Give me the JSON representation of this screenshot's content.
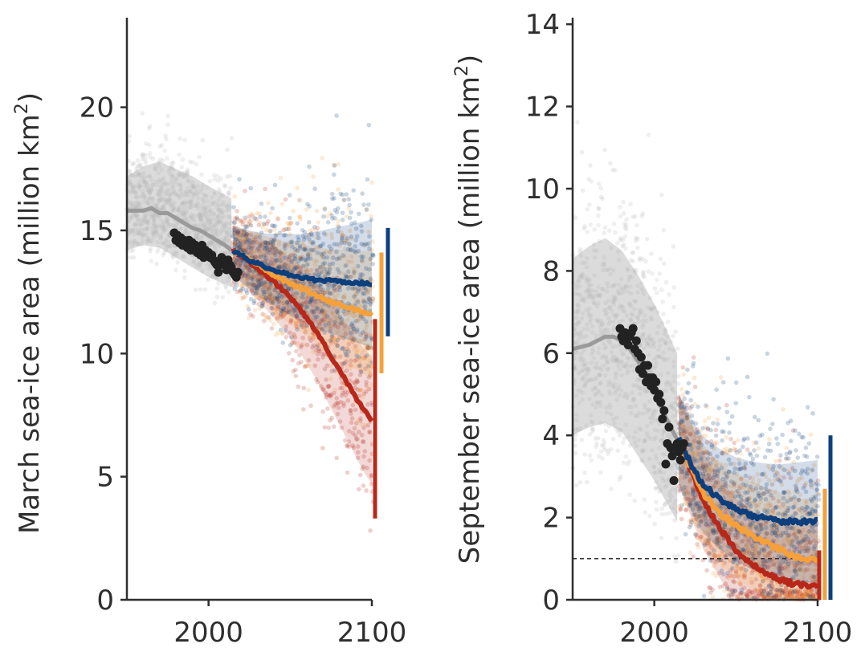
{
  "chart_data": [
    {
      "type": "scatter",
      "panel": "left",
      "ylabel": "March sea-ice area (million km",
      "ylabel_sup": "2",
      "ylabel_close": ")",
      "xlim": [
        1950,
        2100
      ],
      "ylim": [
        0,
        23
      ],
      "xticks": [
        2000,
        2100
      ],
      "yticks": [
        0,
        5,
        10,
        15,
        20
      ],
      "historical_mean": [
        [
          1950,
          15.8
        ],
        [
          1960,
          15.8
        ],
        [
          1965,
          15.9
        ],
        [
          1970,
          15.7
        ],
        [
          1975,
          15.7
        ],
        [
          1980,
          15.5
        ],
        [
          1985,
          15.3
        ],
        [
          1990,
          15.1
        ],
        [
          1995,
          15.0
        ],
        [
          2000,
          14.8
        ],
        [
          2005,
          14.6
        ],
        [
          2010,
          14.4
        ],
        [
          2014,
          14.2
        ]
      ],
      "historical_band": [
        [
          1950,
          14.2,
          17.2
        ],
        [
          1960,
          14.4,
          17.6
        ],
        [
          1970,
          14.3,
          17.8
        ],
        [
          1980,
          13.9,
          17.5
        ],
        [
          1990,
          13.5,
          17.2
        ],
        [
          2000,
          13.1,
          16.8
        ],
        [
          2014,
          12.7,
          16.3
        ]
      ],
      "observations": [
        [
          1979,
          14.9
        ],
        [
          1980,
          14.6
        ],
        [
          1981,
          14.8
        ],
        [
          1982,
          14.5
        ],
        [
          1983,
          14.7
        ],
        [
          1984,
          14.4
        ],
        [
          1985,
          14.6
        ],
        [
          1986,
          14.5
        ],
        [
          1987,
          14.3
        ],
        [
          1988,
          14.6
        ],
        [
          1989,
          14.2
        ],
        [
          1990,
          14.5
        ],
        [
          1991,
          14.2
        ],
        [
          1992,
          14.4
        ],
        [
          1993,
          14.1
        ],
        [
          1994,
          14.3
        ],
        [
          1995,
          14.0
        ],
        [
          1996,
          14.4
        ],
        [
          1997,
          13.9
        ],
        [
          1998,
          14.2
        ],
        [
          1999,
          14.0
        ],
        [
          2000,
          14.1
        ],
        [
          2001,
          13.9
        ],
        [
          2002,
          14.0
        ],
        [
          2003,
          13.8
        ],
        [
          2004,
          13.7
        ],
        [
          2005,
          13.6
        ],
        [
          2006,
          13.3
        ],
        [
          2007,
          13.6
        ],
        [
          2008,
          13.9
        ],
        [
          2009,
          13.8
        ],
        [
          2010,
          13.7
        ],
        [
          2011,
          13.4
        ],
        [
          2012,
          13.8
        ],
        [
          2013,
          13.6
        ],
        [
          2014,
          13.5
        ],
        [
          2015,
          13.3
        ],
        [
          2016,
          13.2
        ],
        [
          2017,
          13.1
        ],
        [
          2018,
          13.3
        ]
      ],
      "series": [
        {
          "name": "",
          "color": "#0d3f7d",
          "values": [
            [
              2015,
              14.2
            ],
            [
              2025,
              13.8
            ],
            [
              2035,
              13.5
            ],
            [
              2045,
              13.3
            ],
            [
              2055,
              13.1
            ],
            [
              2065,
              13.0
            ],
            [
              2075,
              12.95
            ],
            [
              2085,
              12.9
            ],
            [
              2095,
              12.85
            ],
            [
              2100,
              12.85
            ]
          ],
          "range": [
            10.7,
            15.1
          ]
        },
        {
          "name": "",
          "color": "#f6a03a",
          "values": [
            [
              2015,
              14.2
            ],
            [
              2025,
              13.8
            ],
            [
              2035,
              13.4
            ],
            [
              2045,
              13.0
            ],
            [
              2055,
              12.7
            ],
            [
              2065,
              12.4
            ],
            [
              2075,
              12.1
            ],
            [
              2085,
              11.9
            ],
            [
              2095,
              11.65
            ],
            [
              2100,
              11.6
            ]
          ],
          "range": [
            9.2,
            14.1
          ]
        },
        {
          "name": "",
          "color": "#b8281a",
          "values": [
            [
              2015,
              14.2
            ],
            [
              2025,
              13.7
            ],
            [
              2035,
              13.2
            ],
            [
              2045,
              12.6
            ],
            [
              2055,
              11.9
            ],
            [
              2065,
              11.0
            ],
            [
              2075,
              9.9
            ],
            [
              2085,
              8.8
            ],
            [
              2095,
              7.7
            ],
            [
              2100,
              7.3
            ]
          ],
          "range": [
            3.3,
            11.4
          ]
        }
      ]
    },
    {
      "type": "scatter",
      "panel": "right",
      "ylabel": "September sea-ice area (million km",
      "ylabel_sup": "2",
      "ylabel_close": ")",
      "xlim": [
        1950,
        2100
      ],
      "ylim": [
        0,
        14.2
      ],
      "xticks": [
        2000,
        2100
      ],
      "yticks": [
        0,
        2,
        4,
        6,
        8,
        10,
        12,
        14
      ],
      "threshold": 1,
      "historical_mean": [
        [
          1950,
          6.1
        ],
        [
          1960,
          6.2
        ],
        [
          1965,
          6.3
        ],
        [
          1970,
          6.4
        ],
        [
          1975,
          6.4
        ],
        [
          1980,
          6.3
        ],
        [
          1985,
          6.1
        ],
        [
          1990,
          5.8
        ],
        [
          1995,
          5.5
        ],
        [
          2000,
          5.1
        ],
        [
          2005,
          4.6
        ],
        [
          2010,
          4.2
        ],
        [
          2014,
          3.9
        ]
      ],
      "historical_band": [
        [
          1950,
          4.0,
          8.3
        ],
        [
          1960,
          4.2,
          8.6
        ],
        [
          1970,
          4.3,
          8.8
        ],
        [
          1980,
          4.1,
          8.5
        ],
        [
          1990,
          3.5,
          7.9
        ],
        [
          2000,
          2.9,
          7.2
        ],
        [
          2014,
          1.9,
          6.0
        ]
      ],
      "observations": [
        [
          1979,
          6.6
        ],
        [
          1980,
          6.4
        ],
        [
          1981,
          6.3
        ],
        [
          1982,
          6.5
        ],
        [
          1983,
          6.4
        ],
        [
          1984,
          6.2
        ],
        [
          1985,
          6.4
        ],
        [
          1986,
          6.5
        ],
        [
          1987,
          6.6
        ],
        [
          1988,
          6.1
        ],
        [
          1989,
          6.3
        ],
        [
          1990,
          6.0
        ],
        [
          1991,
          5.6
        ],
        [
          1992,
          5.9
        ],
        [
          1993,
          5.5
        ],
        [
          1994,
          5.7
        ],
        [
          1995,
          5.3
        ],
        [
          1996,
          5.7
        ],
        [
          1997,
          5.4
        ],
        [
          1998,
          5.2
        ],
        [
          1999,
          5.4
        ],
        [
          2000,
          5.1
        ],
        [
          2001,
          5.3
        ],
        [
          2002,
          4.9
        ],
        [
          2003,
          5.0
        ],
        [
          2004,
          4.8
        ],
        [
          2005,
          4.4
        ],
        [
          2006,
          4.6
        ],
        [
          2007,
          3.3
        ],
        [
          2008,
          3.8
        ],
        [
          2009,
          4.2
        ],
        [
          2010,
          3.7
        ],
        [
          2011,
          3.5
        ],
        [
          2012,
          2.9
        ],
        [
          2013,
          3.7
        ],
        [
          2014,
          3.8
        ],
        [
          2015,
          3.6
        ],
        [
          2016,
          3.4
        ],
        [
          2017,
          3.7
        ],
        [
          2018,
          3.8
        ]
      ],
      "series": [
        {
          "name": "",
          "color": "#0d3f7d",
          "values": [
            [
              2015,
              3.9
            ],
            [
              2020,
              3.5
            ],
            [
              2025,
              3.1
            ],
            [
              2030,
              2.8
            ],
            [
              2040,
              2.45
            ],
            [
              2050,
              2.2
            ],
            [
              2060,
              2.05
            ],
            [
              2070,
              1.95
            ],
            [
              2080,
              1.9
            ],
            [
              2090,
              1.9
            ],
            [
              2100,
              1.9
            ]
          ],
          "range": [
            0,
            4.0
          ]
        },
        {
          "name": "",
          "color": "#f6a03a",
          "values": [
            [
              2015,
              3.9
            ],
            [
              2020,
              3.4
            ],
            [
              2025,
              3.0
            ],
            [
              2030,
              2.6
            ],
            [
              2040,
              2.1
            ],
            [
              2050,
              1.8
            ],
            [
              2060,
              1.55
            ],
            [
              2070,
              1.35
            ],
            [
              2080,
              1.15
            ],
            [
              2090,
              1.0
            ],
            [
              2100,
              0.95
            ]
          ],
          "range": [
            0,
            2.7
          ]
        },
        {
          "name": "",
          "color": "#b8281a",
          "values": [
            [
              2015,
              3.9
            ],
            [
              2020,
              3.4
            ],
            [
              2025,
              2.9
            ],
            [
              2030,
              2.4
            ],
            [
              2040,
              1.75
            ],
            [
              2050,
              1.2
            ],
            [
              2060,
              0.85
            ],
            [
              2070,
              0.6
            ],
            [
              2080,
              0.45
            ],
            [
              2090,
              0.35
            ],
            [
              2100,
              0.32
            ]
          ],
          "range": [
            0,
            1.2
          ]
        }
      ]
    }
  ]
}
